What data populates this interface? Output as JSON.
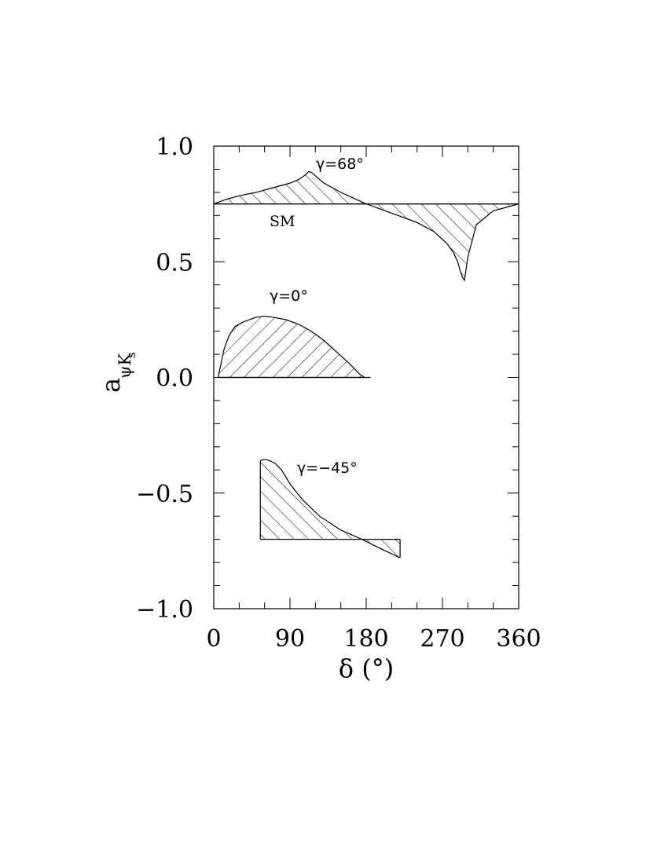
{
  "chart_data": {
    "type": "area",
    "xlabel": "δ  (°)",
    "ylabel_main": "a",
    "ylabel_sub": "ψK",
    "ylabel_subsub": "s",
    "xlim": [
      0,
      360
    ],
    "ylim": [
      -1.0,
      1.0
    ],
    "x_ticks": [
      0,
      90,
      180,
      270,
      360
    ],
    "x_tick_labels": [
      "0",
      "90",
      "180",
      "270",
      "360"
    ],
    "y_ticks": [
      -1.0,
      -0.5,
      0.0,
      0.5,
      1.0
    ],
    "y_tick_labels": [
      "−1.0",
      "−0.5",
      "0.0",
      "0.5",
      "1.0"
    ],
    "reference_lines": [
      {
        "label": "SM",
        "y": 0.75
      },
      {
        "label": "",
        "y": 0.0
      }
    ],
    "series": [
      {
        "name": "γ=68°",
        "baseline": 0.75,
        "x": [
          0,
          15,
          30,
          50,
          70,
          90,
          100,
          108,
          112,
          116,
          122,
          130,
          150,
          180,
          210,
          240,
          260,
          275,
          283,
          288,
          291,
          294,
          296,
          300,
          310,
          330,
          360
        ],
        "y": [
          0.75,
          0.77,
          0.785,
          0.8,
          0.82,
          0.84,
          0.855,
          0.875,
          0.89,
          0.885,
          0.865,
          0.84,
          0.8,
          0.75,
          0.71,
          0.67,
          0.63,
          0.58,
          0.54,
          0.5,
          0.46,
          0.43,
          0.42,
          0.52,
          0.66,
          0.72,
          0.75
        ]
      },
      {
        "name": "γ=0°",
        "baseline": 0.0,
        "x": [
          5,
          8,
          12,
          18,
          25,
          35,
          50,
          60,
          70,
          85,
          100,
          115,
          130,
          145,
          160,
          172,
          178
        ],
        "y": [
          0.0,
          0.05,
          0.12,
          0.18,
          0.22,
          0.24,
          0.26,
          0.265,
          0.26,
          0.25,
          0.23,
          0.2,
          0.16,
          0.11,
          0.06,
          0.015,
          0.0
        ]
      },
      {
        "name": "γ=−45°",
        "baseline": -0.7,
        "x": [
          55,
          58,
          62,
          66,
          72,
          80,
          90,
          105,
          125,
          150,
          175,
          200,
          220
        ],
        "y": [
          -0.36,
          -0.355,
          -0.355,
          -0.36,
          -0.37,
          -0.4,
          -0.46,
          -0.53,
          -0.6,
          -0.66,
          -0.7,
          -0.745,
          -0.78
        ]
      }
    ]
  }
}
